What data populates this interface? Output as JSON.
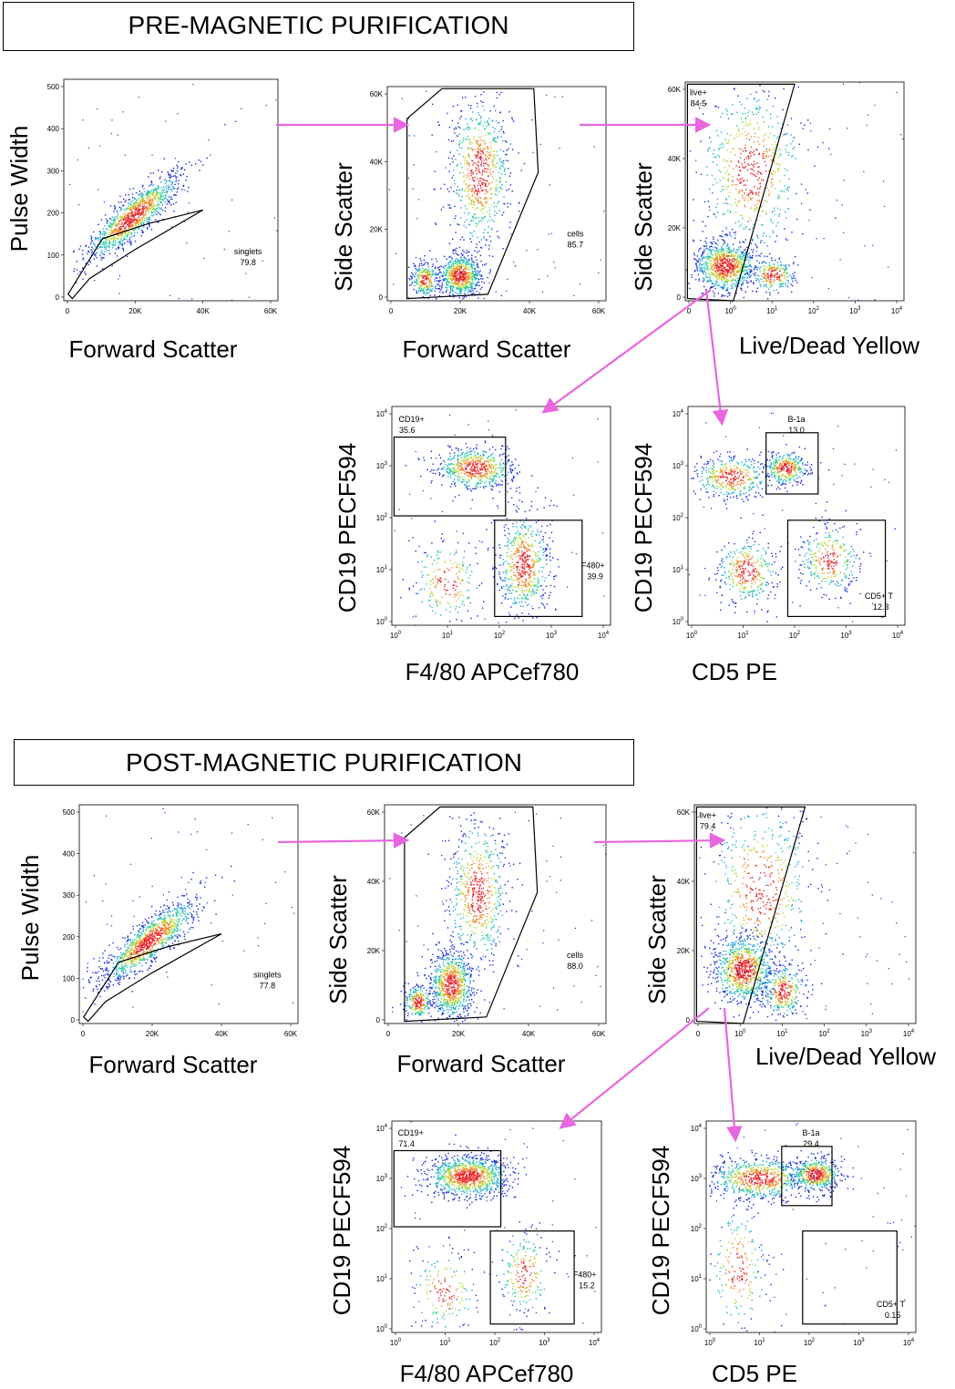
{
  "colors": {
    "arrow": "#e866e0",
    "gate": "#000000",
    "low": "#1a2ad8",
    "mid": "#27c9a0",
    "high": "#e8272b"
  },
  "sections": [
    {
      "title": "PRE-MAGNETIC PURIFICATION"
    },
    {
      "title": "POST-MAGNETIC PURIFICATION"
    }
  ],
  "chart_data": [
    {
      "type": "scatter",
      "section": "pre",
      "id": "pre-singlets",
      "xlabel": "Forward Scatter",
      "ylabel": "Pulse Width",
      "xticks": [
        "0",
        "20K",
        "40K",
        "60K"
      ],
      "yticks": [
        "0",
        "100",
        "200",
        "300",
        "400",
        "500"
      ],
      "gate": {
        "label": "singlets",
        "value": "79.8"
      }
    },
    {
      "type": "scatter",
      "section": "pre",
      "id": "pre-cells",
      "xlabel": "Forward Scatter",
      "ylabel": "Side Scatter",
      "xticks": [
        "0",
        "20K",
        "40K",
        "60K"
      ],
      "yticks": [
        "0",
        "20K",
        "40K",
        "60K"
      ],
      "gate": {
        "label": "cells",
        "value": "85.7"
      }
    },
    {
      "type": "scatter",
      "section": "pre",
      "id": "pre-live",
      "xlabel": "Live/Dead Yellow",
      "ylabel": "Side Scatter",
      "xticks": [
        "0",
        "10^0",
        "10^1",
        "10^2",
        "10^3",
        "10^4"
      ],
      "yticks": [
        "0",
        "20K",
        "40K",
        "60K"
      ],
      "gate": {
        "label": "live+",
        "value": "84.5"
      }
    },
    {
      "type": "scatter",
      "section": "pre",
      "id": "pre-cd19-f480",
      "xlabel": "F4/80 APCef780",
      "ylabel": "CD19 PECF594",
      "xticks": [
        "10^0",
        "10^1",
        "10^2",
        "10^3",
        "10^4"
      ],
      "yticks": [
        "10^0",
        "10^1",
        "10^2",
        "10^3",
        "10^4"
      ],
      "gates": [
        {
          "label": "CD19+",
          "value": "35.6"
        },
        {
          "label": "F480+",
          "value": "39.9"
        }
      ]
    },
    {
      "type": "scatter",
      "section": "pre",
      "id": "pre-cd19-cd5",
      "xlabel": "CD5 PE",
      "ylabel": "CD19 PECF594",
      "xticks": [
        "10^0",
        "10^1",
        "10^2",
        "10^3",
        "10^4"
      ],
      "yticks": [
        "10^0",
        "10^1",
        "10^2",
        "10^3",
        "10^4"
      ],
      "gates": [
        {
          "label": "B-1a",
          "value": "13.0"
        },
        {
          "label": "CD5+ T",
          "value": "12.3"
        }
      ]
    },
    {
      "type": "scatter",
      "section": "post",
      "id": "post-singlets",
      "xlabel": "Forward Scatter",
      "ylabel": "Pulse Width",
      "xticks": [
        "0",
        "20K",
        "40K",
        "60K"
      ],
      "yticks": [
        "0",
        "100",
        "200",
        "300",
        "400",
        "500"
      ],
      "gate": {
        "label": "singlets",
        "value": "77.8"
      }
    },
    {
      "type": "scatter",
      "section": "post",
      "id": "post-cells",
      "xlabel": "Forward Scatter",
      "ylabel": "Side Scatter",
      "xticks": [
        "0",
        "20K",
        "40K",
        "60K"
      ],
      "yticks": [
        "0",
        "20K",
        "40K",
        "60K"
      ],
      "gate": {
        "label": "cells",
        "value": "88.0"
      }
    },
    {
      "type": "scatter",
      "section": "post",
      "id": "post-live",
      "xlabel": "Live/Dead Yellow",
      "ylabel": "Side Scatter",
      "xticks": [
        "0",
        "10^0",
        "10^1",
        "10^2",
        "10^3",
        "10^4"
      ],
      "yticks": [
        "0",
        "20K",
        "40K",
        "60K"
      ],
      "gate": {
        "label": "live+",
        "value": "79.4"
      }
    },
    {
      "type": "scatter",
      "section": "post",
      "id": "post-cd19-f480",
      "xlabel": "F4/80 APCef780",
      "ylabel": "CD19 PECF594",
      "xticks": [
        "10^0",
        "10^1",
        "10^2",
        "10^3",
        "10^4"
      ],
      "yticks": [
        "10^0",
        "10^1",
        "10^2",
        "10^3",
        "10^4"
      ],
      "gates": [
        {
          "label": "CD19+",
          "value": "71.4"
        },
        {
          "label": "F480+",
          "value": "15.2"
        }
      ]
    },
    {
      "type": "scatter",
      "section": "post",
      "id": "post-cd19-cd5",
      "xlabel": "CD5 PE",
      "ylabel": "CD19 PECF594",
      "xticks": [
        "10^0",
        "10^1",
        "10^2",
        "10^3",
        "10^4"
      ],
      "yticks": [
        "10^0",
        "10^1",
        "10^2",
        "10^3",
        "10^4"
      ],
      "gates": [
        {
          "label": "B-1a",
          "value": "29.4"
        },
        {
          "label": "CD5+ T",
          "value": "0.15"
        }
      ]
    }
  ]
}
